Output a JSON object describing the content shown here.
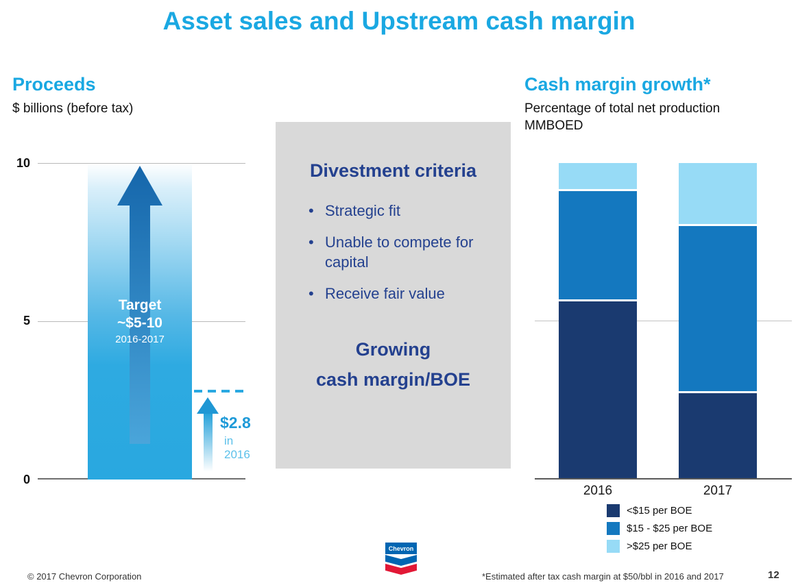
{
  "title": "Asset sales and Upstream cash margin",
  "proceeds": {
    "header": "Proceeds",
    "subtitle": "$ billions (before tax)"
  },
  "criteria": {
    "heading": "Divestment criteria",
    "bullets": [
      "Strategic fit",
      "Unable to compete for capital",
      "Receive fair value"
    ],
    "conclusion": [
      "Growing",
      "cash margin/BOE"
    ]
  },
  "cash_margin": {
    "header": "Cash margin growth*",
    "subtitle_line1": "Percentage of total net production",
    "subtitle_line2": "MMBOED"
  },
  "footer": {
    "copyright": "© 2017 Chevron Corporation",
    "logo_text": "Chevron",
    "footnote": "*Estimated after tax cash margin at $50/bbl in 2016 and 2017",
    "page_number": "12"
  },
  "colors": {
    "accent_blue": "#1aa8e2",
    "navy_text": "#24418f",
    "box_gray": "#d9d9d9",
    "proceeds_bar_blue": "#29a8e0",
    "dark_navy_bar": "#1a3a70",
    "medium_blue_bar": "#1478bf",
    "light_blue_bar": "#97dbf6"
  },
  "chart_data": [
    {
      "type": "bar",
      "title": "Proceeds",
      "ylabel": "$ billions (before tax)",
      "ylim": [
        0,
        10
      ],
      "yticks": [
        "10",
        "5",
        "0"
      ],
      "categories": [
        "Target 2016-2017"
      ],
      "values": [
        10
      ],
      "target": {
        "label": "Target",
        "value": "~$5-10",
        "years": "2016-2017"
      },
      "actual": {
        "value": 2.8,
        "label": "$2.8",
        "sublabel": "in 2016"
      },
      "dashed_line_value": 2.8,
      "grid": true
    },
    {
      "type": "bar",
      "stacked": true,
      "title": "Cash margin growth*",
      "subtitle": "Percentage of total net production MMBOED",
      "categories": [
        "2016",
        "2017"
      ],
      "series": [
        {
          "name": "<$15 per BOE",
          "color": "#1a3a70",
          "values": [
            56,
            27
          ]
        },
        {
          "name": "$15 - $25 per BOE",
          "color": "#1478bf",
          "values": [
            35,
            53
          ]
        },
        {
          "name": ">$25 per BOE",
          "color": "#97dbf6",
          "values": [
            9,
            20
          ]
        }
      ],
      "ylim": [
        0,
        100
      ],
      "units": "percent of total net production",
      "gridline_at": 50,
      "legend_position": "bottom-right"
    }
  ]
}
